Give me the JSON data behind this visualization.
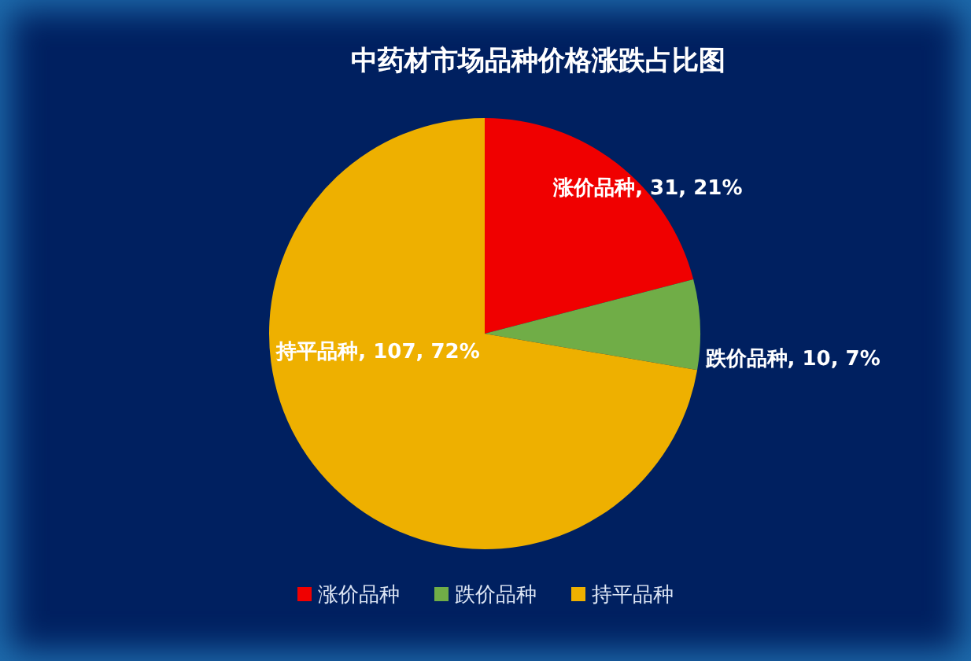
{
  "chart_data": {
    "type": "pie",
    "title": "中药材市场品种价格涨跌占比图",
    "categories": [
      "涨价品种",
      "跌价品种",
      "持平品种"
    ],
    "values": [
      31,
      10,
      107
    ],
    "colors": [
      "#f00000",
      "#70ad47",
      "#eeb000"
    ],
    "value_labels": [
      "涨价品种, 31, 21%",
      "跌价品种, 10, 7%",
      "持平品种, 107, 72%"
    ],
    "legend": "bottom"
  }
}
